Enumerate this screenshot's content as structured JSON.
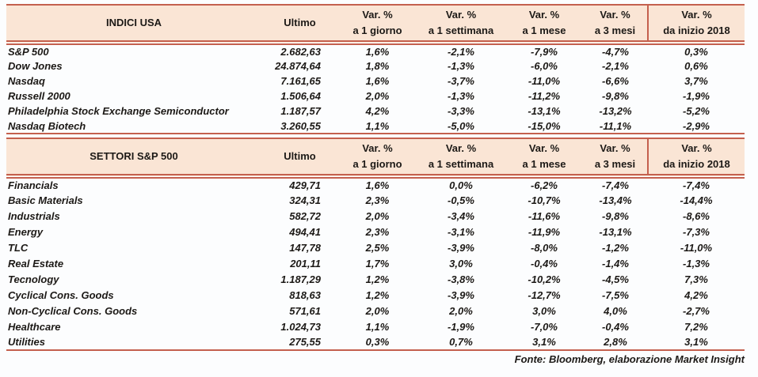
{
  "colors": {
    "border_red": "#C4604E",
    "header_bg": "#FAE5D5",
    "text": "#1C1916",
    "page_bg": "#FCFDFE"
  },
  "columns": {
    "ultimo": "Ultimo",
    "var_label": "Var. %",
    "periods": [
      "a 1 giorno",
      "a 1 settimana",
      "a 1 mese",
      "a 3 mesi",
      "da inizio 2018"
    ]
  },
  "tables": [
    {
      "title": "INDICI USA",
      "rows": [
        {
          "name": "S&P 500",
          "ultimo": "2.682,63",
          "changes": [
            "1,6%",
            "-2,1%",
            "-7,9%",
            "-4,7%",
            "0,3%"
          ]
        },
        {
          "name": "Dow Jones",
          "ultimo": "24.874,64",
          "changes": [
            "1,8%",
            "-1,3%",
            "-6,0%",
            "-2,1%",
            "0,6%"
          ]
        },
        {
          "name": "Nasdaq",
          "ultimo": "7.161,65",
          "changes": [
            "1,6%",
            "-3,7%",
            "-11,0%",
            "-6,6%",
            "3,7%"
          ]
        },
        {
          "name": "Russell 2000",
          "ultimo": "1.506,64",
          "changes": [
            "2,0%",
            "-1,3%",
            "-11,2%",
            "-9,8%",
            "-1,9%"
          ]
        },
        {
          "name": "Philadelphia Stock Exchange Semiconductor",
          "ultimo": "1.187,57",
          "changes": [
            "4,2%",
            "-3,3%",
            "-13,1%",
            "-13,2%",
            "-5,2%"
          ]
        },
        {
          "name": "Nasdaq Biotech",
          "ultimo": "3.260,55",
          "changes": [
            "1,1%",
            "-5,0%",
            "-15,0%",
            "-11,1%",
            "-2,9%"
          ]
        }
      ]
    },
    {
      "title": "SETTORI S&P 500",
      "rows": [
        {
          "name": "Financials",
          "ultimo": "429,71",
          "changes": [
            "1,6%",
            "0,0%",
            "-6,2%",
            "-7,4%",
            "-7,4%"
          ]
        },
        {
          "name": "Basic Materials",
          "ultimo": "324,31",
          "changes": [
            "2,3%",
            "-0,5%",
            "-10,7%",
            "-13,4%",
            "-14,4%"
          ]
        },
        {
          "name": "Industrials",
          "ultimo": "582,72",
          "changes": [
            "2,0%",
            "-3,4%",
            "-11,6%",
            "-9,8%",
            "-8,6%"
          ]
        },
        {
          "name": "Energy",
          "ultimo": "494,41",
          "changes": [
            "2,3%",
            "-3,1%",
            "-11,9%",
            "-13,1%",
            "-7,3%"
          ]
        },
        {
          "name": "TLC",
          "ultimo": "147,78",
          "changes": [
            "2,5%",
            "-3,9%",
            "-8,0%",
            "-1,2%",
            "-11,0%"
          ]
        },
        {
          "name": "Real Estate",
          "ultimo": "201,11",
          "changes": [
            "1,7%",
            "3,0%",
            "-0,4%",
            "-1,4%",
            "-1,3%"
          ]
        },
        {
          "name": "Tecnology",
          "ultimo": "1.187,29",
          "changes": [
            "1,2%",
            "-3,8%",
            "-10,2%",
            "-4,5%",
            "7,3%"
          ]
        },
        {
          "name": "Cyclical Cons. Goods",
          "ultimo": "818,63",
          "changes": [
            "1,2%",
            "-3,9%",
            "-12,7%",
            "-7,5%",
            "4,2%"
          ]
        },
        {
          "name": "Non-Cyclical Cons. Goods",
          "ultimo": "571,61",
          "changes": [
            "2,0%",
            "2,0%",
            "3,0%",
            "4,0%",
            "-2,7%"
          ]
        },
        {
          "name": "Healthcare",
          "ultimo": "1.024,73",
          "changes": [
            "1,1%",
            "-1,9%",
            "-7,0%",
            "-0,4%",
            "7,2%"
          ]
        },
        {
          "name": "Utilities",
          "ultimo": "275,55",
          "changes": [
            "0,3%",
            "0,7%",
            "3,1%",
            "2,8%",
            "3,1%"
          ]
        }
      ]
    }
  ],
  "footer": {
    "source_note": "Fonte: Bloomberg, elaborazione Market Insight"
  }
}
